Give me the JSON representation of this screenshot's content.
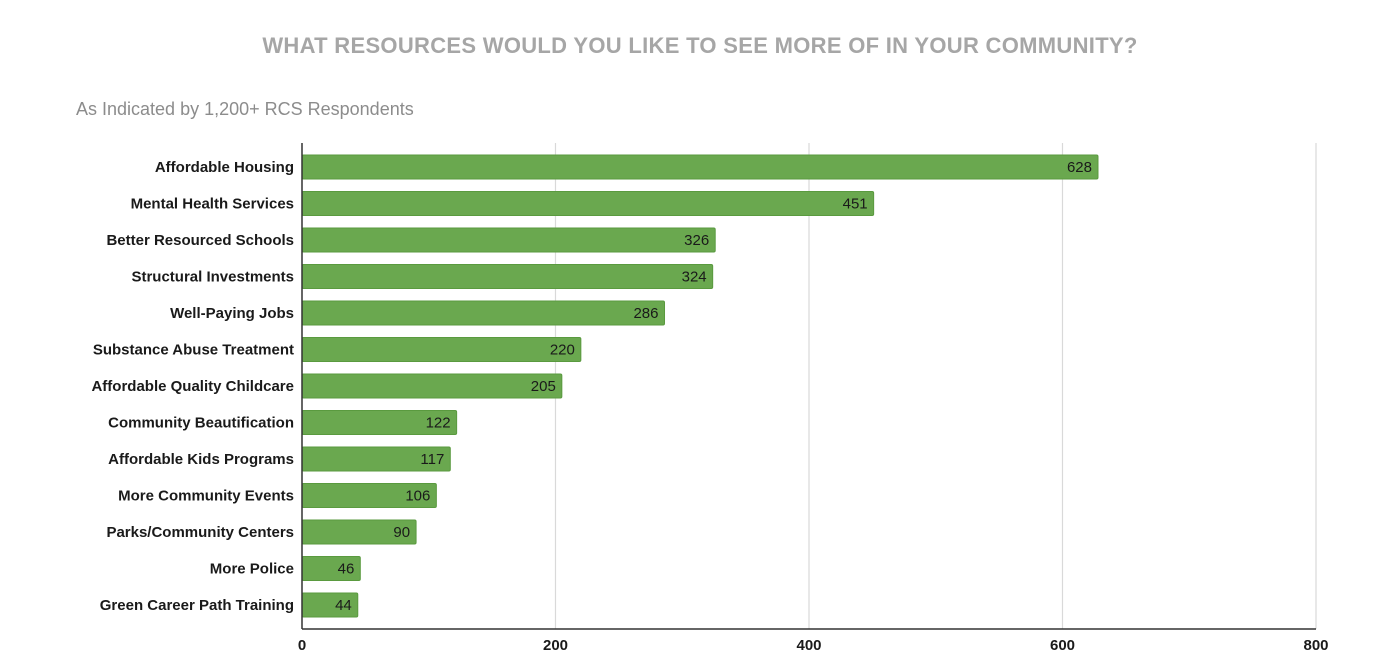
{
  "page": {
    "title": "WHAT RESOURCES WOULD YOU LIKE TO SEE MORE OF IN YOUR COMMUNITY?",
    "subtitle": "As Indicated by 1,200+ RCS Respondents"
  },
  "colors": {
    "bar": "#6aa84f",
    "bar_stroke": "#5a9a3f",
    "grid": "#d9d9d9",
    "axis": "#333333",
    "title": "#a6a6a6",
    "subtitle": "#8c8c8c"
  },
  "chart_data": {
    "type": "bar",
    "orientation": "horizontal",
    "title": "WHAT RESOURCES WOULD YOU LIKE TO SEE MORE OF IN YOUR COMMUNITY?",
    "subtitle": "As Indicated by 1,200+ RCS Respondents",
    "categories": [
      "Affordable Housing",
      "Mental Health Services",
      "Better Resourced Schools",
      "Structural Investments",
      "Well-Paying Jobs",
      "Substance Abuse Treatment",
      "Affordable Quality Childcare",
      "Community Beautification",
      "Affordable Kids Programs",
      "More Community Events",
      "Parks/Community Centers",
      "More Police",
      "Green Career Path Training"
    ],
    "values": [
      628,
      451,
      326,
      324,
      286,
      220,
      205,
      122,
      117,
      106,
      90,
      46,
      44
    ],
    "xlim": [
      0,
      800
    ],
    "x_ticks": [
      0,
      200,
      400,
      600,
      800
    ],
    "xlabel": "",
    "ylabel": "",
    "grid": true,
    "legend": "none",
    "data_labels": true
  }
}
